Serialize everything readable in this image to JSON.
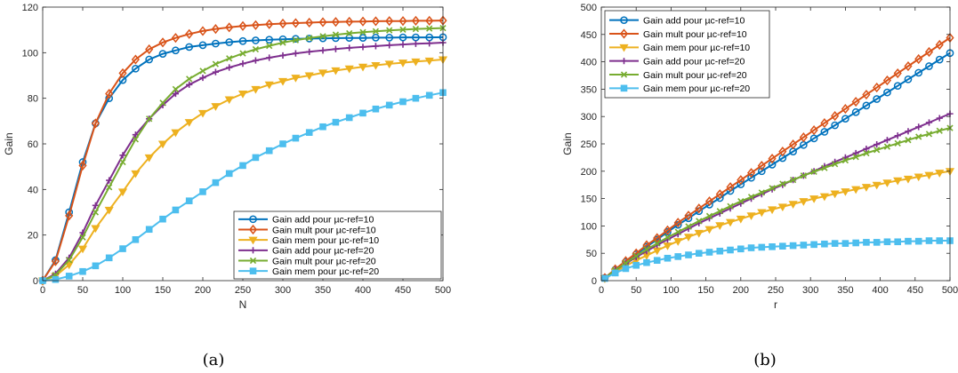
{
  "chart_data": [
    {
      "type": "line",
      "xlabel": "N",
      "ylabel": "Gain",
      "xlim": [
        0,
        500
      ],
      "ylim": [
        0,
        120
      ],
      "xticks": [
        0,
        50,
        100,
        150,
        200,
        250,
        300,
        350,
        400,
        450,
        500
      ],
      "yticks": [
        0,
        20,
        40,
        60,
        80,
        100,
        120
      ],
      "grid": false,
      "legend_position": "bottom-right",
      "caption": "(a)",
      "series": [
        {
          "name": "Gain add pour µc-ref=10",
          "color": "#0072BD",
          "marker": "circle",
          "x": [
            0,
            16,
            33,
            50,
            66,
            83,
            100,
            116,
            133,
            150,
            166,
            183,
            200,
            216,
            233,
            250,
            266,
            283,
            300,
            316,
            333,
            350,
            366,
            383,
            400,
            416,
            433,
            450,
            466,
            483,
            500
          ],
          "y": [
            0,
            9,
            30,
            52,
            69,
            80,
            88,
            93,
            97,
            99.5,
            101,
            102.5,
            103.3,
            104,
            104.6,
            105.1,
            105.4,
            105.7,
            105.9,
            106.1,
            106.2,
            106.3,
            106.4,
            106.5,
            106.5,
            106.6,
            106.6,
            106.7,
            106.7,
            106.7,
            106.8
          ]
        },
        {
          "name": "Gain mult pour µc-ref=10",
          "color": "#D95319",
          "marker": "diamond",
          "x": [
            0,
            16,
            33,
            50,
            66,
            83,
            100,
            116,
            133,
            150,
            166,
            183,
            200,
            216,
            233,
            250,
            266,
            283,
            300,
            316,
            333,
            350,
            366,
            383,
            400,
            416,
            433,
            450,
            466,
            483,
            500
          ],
          "y": [
            0,
            8.5,
            28.5,
            50.5,
            69,
            82,
            91,
            97,
            101.5,
            104.5,
            106.5,
            108.2,
            109.5,
            110.4,
            111.1,
            111.7,
            112.1,
            112.5,
            112.8,
            113,
            113.2,
            113.4,
            113.5,
            113.6,
            113.7,
            113.8,
            113.9,
            113.9,
            114,
            114,
            114.1
          ]
        },
        {
          "name": "Gain mem pour µc-ref=10",
          "color": "#EDB120",
          "marker": "triangle-down",
          "x": [
            0,
            16,
            33,
            50,
            66,
            83,
            100,
            116,
            133,
            150,
            166,
            183,
            200,
            216,
            233,
            250,
            266,
            283,
            300,
            316,
            333,
            350,
            366,
            383,
            400,
            416,
            433,
            450,
            466,
            483,
            500
          ],
          "y": [
            0,
            2,
            7,
            14,
            23,
            31,
            39,
            47,
            54,
            60,
            65,
            69.5,
            73.5,
            76.5,
            79.5,
            82,
            84,
            86,
            87.5,
            89,
            90,
            91.2,
            92.2,
            93,
            93.8,
            94.5,
            95.1,
            95.6,
            96.1,
            96.5,
            97
          ]
        },
        {
          "name": "Gain add pour µc-ref=20",
          "color": "#7E2F8E",
          "marker": "plus",
          "x": [
            0,
            16,
            33,
            50,
            66,
            83,
            100,
            116,
            133,
            150,
            166,
            183,
            200,
            216,
            233,
            250,
            266,
            283,
            300,
            316,
            333,
            350,
            366,
            383,
            400,
            416,
            433,
            450,
            466,
            483,
            500
          ],
          "y": [
            0,
            3,
            10,
            21,
            33,
            44,
            55,
            64,
            71,
            77,
            82,
            86,
            89,
            91.5,
            93.5,
            95.2,
            96.6,
            97.8,
            98.8,
            99.7,
            100.4,
            101,
            101.6,
            102.1,
            102.5,
            102.9,
            103.3,
            103.6,
            103.9,
            104.1,
            104.4
          ]
        },
        {
          "name": "Gain mult pour µc-ref=20",
          "color": "#77AC30",
          "marker": "x",
          "x": [
            0,
            16,
            33,
            50,
            66,
            83,
            100,
            116,
            133,
            150,
            166,
            183,
            200,
            216,
            233,
            250,
            266,
            283,
            300,
            316,
            333,
            350,
            366,
            383,
            400,
            416,
            433,
            450,
            466,
            483,
            500
          ],
          "y": [
            0,
            2.5,
            9,
            19,
            30,
            41,
            52,
            62,
            71,
            78,
            84,
            88.5,
            92,
            95,
            97.5,
            99.7,
            101.5,
            103,
            104.4,
            105.5,
            106.4,
            107.2,
            107.9,
            108.5,
            109,
            109.4,
            109.8,
            110.1,
            110.4,
            110.6,
            110.8
          ]
        },
        {
          "name": "Gain mem pour µc-ref=20",
          "color": "#4DBEEE",
          "marker": "square",
          "x": [
            0,
            16,
            33,
            50,
            66,
            83,
            100,
            116,
            133,
            150,
            166,
            183,
            200,
            216,
            233,
            250,
            266,
            283,
            300,
            316,
            333,
            350,
            366,
            383,
            400,
            416,
            433,
            450,
            466,
            483,
            500
          ],
          "y": [
            0,
            0.5,
            2,
            4,
            6.5,
            10,
            14,
            18,
            22.5,
            27,
            31,
            35,
            39,
            43,
            47,
            50.5,
            54,
            57,
            60,
            62.5,
            65,
            67.5,
            69.5,
            71.5,
            73.5,
            75.3,
            77,
            78.5,
            80,
            81.3,
            82.5
          ]
        }
      ]
    },
    {
      "type": "line",
      "xlabel": "r",
      "ylabel": "Gain",
      "xlim": [
        0,
        500
      ],
      "ylim": [
        0,
        500
      ],
      "xticks": [
        0,
        50,
        100,
        150,
        200,
        250,
        300,
        350,
        400,
        450,
        500
      ],
      "yticks": [
        0,
        50,
        100,
        150,
        200,
        250,
        300,
        350,
        400,
        450,
        500
      ],
      "grid": false,
      "legend_position": "top-left",
      "caption": "(b)",
      "series": [
        {
          "name": "Gain add pour µc-ref=10",
          "color": "#0072BD",
          "marker": "circle",
          "x": [
            5,
            20,
            35,
            50,
            65,
            80,
            95,
            110,
            125,
            140,
            155,
            170,
            185,
            200,
            215,
            230,
            245,
            260,
            275,
            290,
            305,
            320,
            335,
            350,
            365,
            380,
            395,
            410,
            425,
            440,
            455,
            470,
            485,
            500
          ],
          "y": [
            5,
            20,
            34,
            48,
            62,
            75,
            89,
            102,
            114,
            127,
            139,
            151,
            164,
            176,
            188,
            200,
            212,
            224,
            236,
            248,
            260,
            272,
            284,
            296,
            308,
            320,
            332,
            344,
            356,
            368,
            380,
            392,
            404,
            416
          ]
        },
        {
          "name": "Gain mult pour µc-ref=10",
          "color": "#D95319",
          "marker": "diamond",
          "x": [
            5,
            20,
            35,
            50,
            65,
            80,
            95,
            110,
            125,
            140,
            155,
            170,
            185,
            200,
            215,
            230,
            245,
            260,
            275,
            290,
            305,
            320,
            335,
            350,
            365,
            380,
            395,
            410,
            425,
            440,
            455,
            470,
            485,
            500
          ],
          "y": [
            5,
            21,
            36,
            50,
            65,
            78,
            92,
            106,
            119,
            132,
            145,
            158,
            171,
            184,
            197,
            210,
            223,
            236,
            249,
            262,
            275,
            288,
            301,
            314,
            327,
            340,
            353,
            366,
            379,
            392,
            405,
            418,
            431,
            444
          ]
        },
        {
          "name": "Gain mem pour µc-ref=10",
          "color": "#EDB120",
          "marker": "triangle-down",
          "x": [
            5,
            20,
            35,
            50,
            65,
            80,
            95,
            110,
            125,
            140,
            155,
            170,
            185,
            200,
            215,
            230,
            245,
            260,
            275,
            290,
            305,
            320,
            335,
            350,
            365,
            380,
            395,
            410,
            425,
            440,
            455,
            470,
            485,
            500
          ],
          "y": [
            4,
            16,
            27,
            37,
            46,
            55,
            64,
            72,
            80,
            87,
            94,
            101,
            107,
            113,
            119,
            125,
            130,
            135,
            140,
            145,
            150,
            154,
            159,
            163,
            167,
            171,
            175,
            179,
            183,
            186,
            190,
            193,
            197,
            200
          ]
        },
        {
          "name": "Gain add pour µc-ref=20",
          "color": "#7E2F8E",
          "marker": "plus",
          "x": [
            5,
            20,
            35,
            50,
            65,
            80,
            95,
            110,
            125,
            140,
            155,
            170,
            185,
            200,
            215,
            230,
            245,
            260,
            275,
            290,
            305,
            320,
            335,
            350,
            365,
            380,
            395,
            410,
            425,
            440,
            455,
            470,
            485,
            500
          ],
          "y": [
            5,
            19,
            31,
            43,
            54,
            65,
            75,
            85,
            95,
            105,
            114,
            123,
            132,
            141,
            150,
            158,
            167,
            175,
            184,
            192,
            200,
            209,
            217,
            225,
            233,
            241,
            249,
            257,
            265,
            273,
            281,
            289,
            297,
            305
          ]
        },
        {
          "name": "Gain mult pour µc-ref=20",
          "color": "#77AC30",
          "marker": "x",
          "x": [
            5,
            20,
            35,
            50,
            65,
            80,
            95,
            110,
            125,
            140,
            155,
            170,
            185,
            200,
            215,
            230,
            245,
            260,
            275,
            290,
            305,
            320,
            335,
            350,
            365,
            380,
            395,
            410,
            425,
            440,
            455,
            470,
            485,
            500
          ],
          "y": [
            5,
            19,
            32,
            45,
            57,
            68,
            79,
            89,
            99,
            109,
            118,
            127,
            136,
            145,
            153,
            161,
            169,
            177,
            184,
            192,
            199,
            206,
            213,
            220,
            226,
            233,
            239,
            245,
            251,
            257,
            263,
            268,
            274,
            279
          ]
        },
        {
          "name": "Gain mem pour µc-ref=20",
          "color": "#4DBEEE",
          "marker": "square",
          "x": [
            5,
            20,
            35,
            50,
            65,
            80,
            95,
            110,
            125,
            140,
            155,
            170,
            185,
            200,
            215,
            230,
            245,
            260,
            275,
            290,
            305,
            320,
            335,
            350,
            365,
            380,
            395,
            410,
            425,
            440,
            455,
            470,
            485,
            500
          ],
          "y": [
            4,
            14,
            22,
            28,
            33,
            37,
            41,
            44,
            47,
            50,
            52,
            54,
            56,
            58,
            60,
            61,
            62,
            63,
            64,
            65,
            66,
            67,
            68,
            68,
            69,
            70,
            70,
            71,
            71,
            72,
            72,
            73,
            73,
            73
          ]
        }
      ]
    }
  ]
}
